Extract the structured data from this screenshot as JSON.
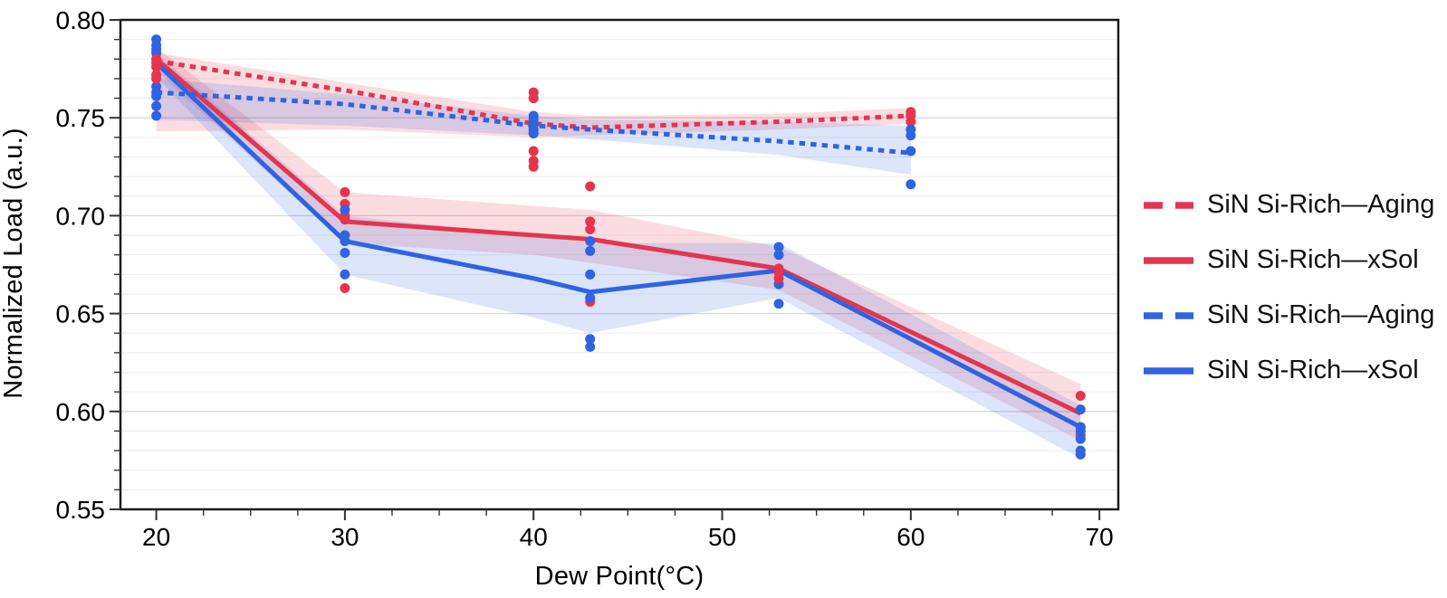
{
  "chart_data": {
    "type": "line",
    "title": "",
    "xlabel": "Dew Point(°C)",
    "ylabel": "Normalized Load (a.u.)",
    "xlim": [
      18.1,
      71.0
    ],
    "ylim": [
      0.55,
      0.8
    ],
    "x_ticks": [
      20,
      30,
      40,
      50,
      60,
      70
    ],
    "x_minor_tick_step": 2.5,
    "y_ticks": [
      0.55,
      0.6,
      0.65,
      0.7,
      0.75,
      0.8
    ],
    "y_minor_tick_step": 0.01,
    "grid": "horizontal gridlines every 0.01, no vertical gridlines",
    "legend_position": "right of plot",
    "colors": {
      "red": "#e5344e",
      "blue": "#2e63e2",
      "band_opacity": 0.17,
      "gridline_minor": "#ededed",
      "gridline_major": "#d8d8d8",
      "plot_border": "#1a1a1a",
      "tick": "#333333"
    },
    "series": [
      {
        "name": "SiN Si-Rich—Aging",
        "color": "red",
        "style": "dashed",
        "x": [
          20,
          30,
          40,
          43,
          53,
          60
        ],
        "y": [
          0.779,
          0.764,
          0.747,
          0.745,
          0.748,
          0.751
        ],
        "band_upper": [
          0.783,
          0.768,
          0.753,
          0.751,
          0.752,
          0.755
        ],
        "band_lower": [
          0.743,
          0.744,
          0.74,
          0.741,
          0.744,
          0.747
        ]
      },
      {
        "name": "SiN Si-Rich—xSol",
        "color": "red",
        "style": "solid",
        "x": [
          20,
          30,
          40,
          43,
          53,
          69
        ],
        "y": [
          0.78,
          0.697,
          0.69,
          0.688,
          0.673,
          0.599
        ],
        "band_upper": [
          0.786,
          0.712,
          0.705,
          0.703,
          0.684,
          0.614
        ],
        "band_lower": [
          0.774,
          0.686,
          0.68,
          0.676,
          0.662,
          0.585
        ]
      },
      {
        "name": "SiN Si-Rich—Aging",
        "color": "blue",
        "style": "dashed",
        "x": [
          20,
          30,
          40,
          43,
          53,
          60
        ],
        "y": [
          0.763,
          0.757,
          0.746,
          0.744,
          0.738,
          0.732
        ],
        "band_upper": [
          0.77,
          0.762,
          0.751,
          0.749,
          0.748,
          0.746
        ],
        "band_lower": [
          0.749,
          0.746,
          0.741,
          0.739,
          0.731,
          0.721
        ]
      },
      {
        "name": "SiN Si-Rich—xSol",
        "color": "blue",
        "style": "solid",
        "x": [
          20,
          30,
          40,
          43,
          53,
          69
        ],
        "y": [
          0.778,
          0.687,
          0.668,
          0.661,
          0.672,
          0.592
        ],
        "band_upper": [
          0.783,
          0.7,
          0.69,
          0.686,
          0.686,
          0.603
        ],
        "band_lower": [
          0.771,
          0.67,
          0.648,
          0.64,
          0.658,
          0.576
        ]
      }
    ],
    "scatter": [
      {
        "x": 20,
        "color": "blue",
        "values": [
          0.79,
          0.787,
          0.785,
          0.783,
          0.766,
          0.763,
          0.761,
          0.756,
          0.751
        ]
      },
      {
        "x": 20,
        "color": "red",
        "values": [
          0.78,
          0.778,
          0.776,
          0.772,
          0.77
        ]
      },
      {
        "x": 30,
        "color": "red",
        "values": [
          0.712,
          0.706,
          0.7,
          0.698,
          0.663
        ]
      },
      {
        "x": 30,
        "color": "blue",
        "values": [
          0.703,
          0.69,
          0.687,
          0.681,
          0.67
        ]
      },
      {
        "x": 40,
        "color": "red",
        "values": [
          0.763,
          0.76,
          0.742,
          0.733,
          0.728,
          0.725
        ]
      },
      {
        "x": 40,
        "color": "blue",
        "values": [
          0.751,
          0.749,
          0.747,
          0.744,
          0.742
        ]
      },
      {
        "x": 43,
        "color": "red",
        "values": [
          0.715,
          0.697,
          0.693,
          0.656
        ]
      },
      {
        "x": 43,
        "color": "blue",
        "values": [
          0.687,
          0.682,
          0.67,
          0.658,
          0.637,
          0.633
        ]
      },
      {
        "x": 53,
        "color": "blue",
        "values": [
          0.684,
          0.68,
          0.665,
          0.655
        ]
      },
      {
        "x": 53,
        "color": "red",
        "values": [
          0.673,
          0.671,
          0.668
        ]
      },
      {
        "x": 60,
        "color": "red",
        "values": [
          0.753,
          0.751,
          0.748
        ]
      },
      {
        "x": 60,
        "color": "blue",
        "values": [
          0.744,
          0.741,
          0.733,
          0.716
        ]
      },
      {
        "x": 69,
        "color": "red",
        "values": [
          0.608,
          0.592,
          0.588
        ]
      },
      {
        "x": 69,
        "color": "blue",
        "values": [
          0.601,
          0.592,
          0.59,
          0.586,
          0.58,
          0.578
        ]
      }
    ],
    "legend": [
      {
        "label": "SiN Si-Rich—Aging",
        "color": "red",
        "style": "dashed"
      },
      {
        "label": "SiN Si-Rich—xSol",
        "color": "red",
        "style": "solid"
      },
      {
        "label": "SiN Si-Rich—Aging",
        "color": "blue",
        "style": "dashed"
      },
      {
        "label": "SiN Si-Rich—xSol",
        "color": "blue",
        "style": "solid"
      }
    ]
  }
}
